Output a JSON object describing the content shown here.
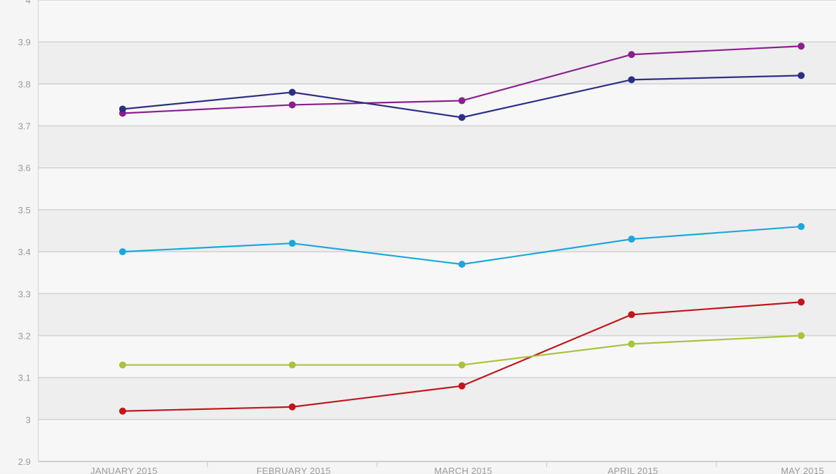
{
  "chart_data": {
    "type": "line",
    "categories": [
      "JANUARY 2015",
      "FEBRUARY 2015",
      "MARCH 2015",
      "APRIL 2015",
      "MAY 2015"
    ],
    "ylim": [
      2.9,
      4.0
    ],
    "yticks": [
      "2.9",
      "3",
      "3.1",
      "3.2",
      "3.3",
      "3.4",
      "3.5",
      "3.6",
      "3.7",
      "3.8",
      "3.9",
      "4"
    ],
    "grid": true,
    "legend": "none",
    "series": [
      {
        "color": "#8b1f8f",
        "values": [
          3.73,
          3.75,
          3.76,
          3.87,
          3.89
        ]
      },
      {
        "color": "#2d2f86",
        "values": [
          3.74,
          3.78,
          3.72,
          3.81,
          3.82
        ]
      },
      {
        "color": "#1aa7dc",
        "values": [
          3.4,
          3.42,
          3.37,
          3.43,
          3.46
        ]
      },
      {
        "color": "#c0161b",
        "values": [
          3.02,
          3.03,
          3.08,
          3.25,
          3.28
        ]
      },
      {
        "color": "#a8c43c",
        "values": [
          3.13,
          3.13,
          3.13,
          3.18,
          3.2
        ]
      }
    ]
  }
}
